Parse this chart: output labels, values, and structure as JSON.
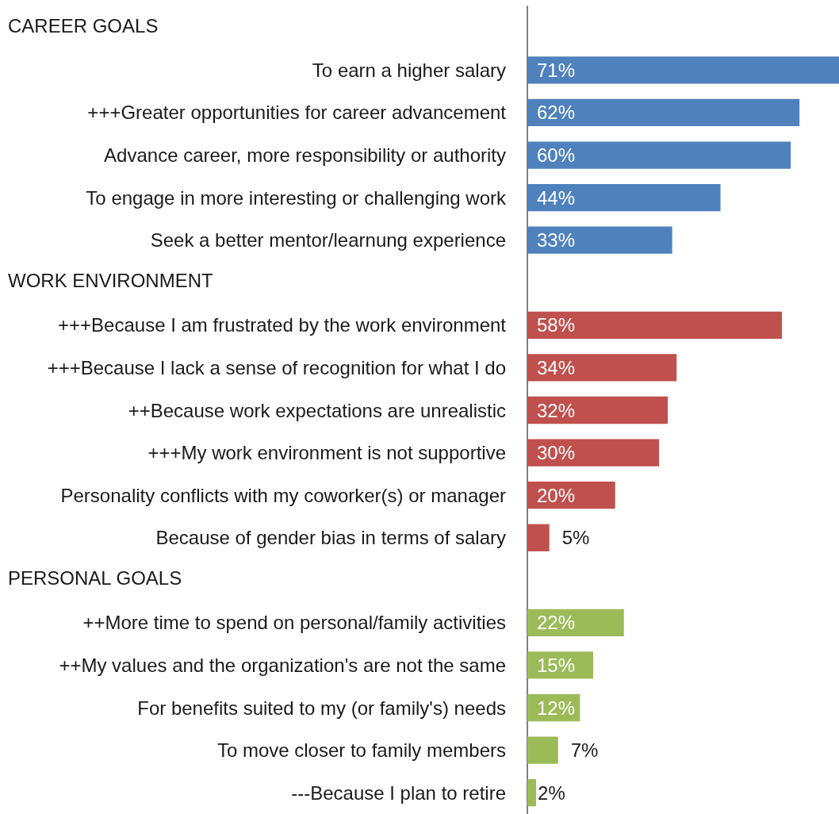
{
  "chart_data": {
    "type": "bar",
    "orientation": "horizontal",
    "categories": [
      null,
      "To earn a higher salary",
      "+++Greater opportunities for career advancement",
      "Advance career, more responsibility or authority",
      "To engage in more interesting or challenging work",
      "Seek a better mentor/learnung experience",
      null,
      "+++Because I am frustrated by the work environment",
      "+++Because I lack a sense of recognition for what I do",
      "++Because work expectations are unrealistic",
      "+++My work environment is not supportive",
      "Personality conflicts with my coworker(s) or manager",
      "Because of gender bias in terms of salary",
      null,
      "++More time to spend on personal/family activities",
      "++My values and the organization's are not the same",
      "For benefits suited to my (or family's) needs",
      "To move closer to family members",
      "---Because I plan to retire"
    ],
    "values": [
      null,
      71,
      62,
      60,
      44,
      33,
      null,
      58,
      34,
      32,
      30,
      20,
      5,
      null,
      22,
      15,
      12,
      7,
      2
    ],
    "value_labels": [
      null,
      "71%",
      "62%",
      "60%",
      "44%",
      "33%",
      null,
      "58%",
      "34%",
      "32%",
      "30%",
      "20%",
      "5%",
      null,
      "22%",
      "15%",
      "12%",
      "7%",
      "2%"
    ],
    "colors": [
      null,
      "#4f81bd",
      "#4f81bd",
      "#4f81bd",
      "#4f81bd",
      "#4f81bd",
      null,
      "#c0504d",
      "#c0504d",
      "#c0504d",
      "#c0504d",
      "#c0504d",
      "#c0504d",
      null,
      "#9bbb59",
      "#9bbb59",
      "#9bbb59",
      "#9bbb59",
      "#9bbb59"
    ],
    "annotations": [
      "CAREER GOALS",
      "WORK ENVIRONMENT",
      "PERSONAL GOALS"
    ]
  }
}
